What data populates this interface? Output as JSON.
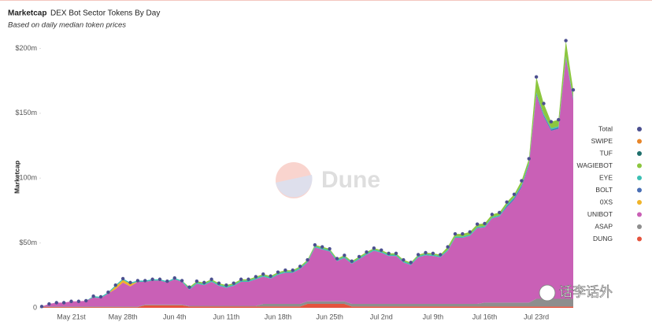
{
  "chart_data": {
    "type": "area",
    "stacked": true,
    "title": "Marketcap",
    "subtitle": "DEX Bot Sector Tokens By Day",
    "note": "Based on daily median token prices",
    "ylabel": "Marketcap",
    "legend": "right",
    "grid": false,
    "ylim": [
      0,
      210
    ],
    "yticks": [
      0,
      {
        "value": 50,
        "label": "$50m"
      },
      {
        "value": 100,
        "label": "$100m"
      },
      {
        "value": 150,
        "label": "$150m"
      },
      {
        "value": 200,
        "label": "$200m"
      }
    ],
    "categories": [
      null,
      null,
      null,
      null,
      "May 21st",
      null,
      null,
      null,
      null,
      null,
      null,
      "May 28th",
      null,
      null,
      null,
      null,
      null,
      null,
      "Jun 4th",
      null,
      null,
      null,
      null,
      null,
      null,
      "Jun 11th",
      null,
      null,
      null,
      null,
      null,
      null,
      "Jun 18th",
      null,
      null,
      null,
      null,
      null,
      null,
      "Jun 25th",
      null,
      null,
      null,
      null,
      null,
      null,
      "Jul 2nd",
      null,
      null,
      null,
      null,
      null,
      null,
      "Jul 9th",
      null,
      null,
      null,
      null,
      null,
      null,
      "Jul 16th",
      null,
      null,
      null,
      null,
      null,
      null,
      "Jul 23rd",
      null,
      null,
      null,
      null,
      null
    ],
    "series": [
      {
        "name": "Total",
        "type": "scatter",
        "color": "#4b4f8f",
        "values": [
          1,
          3,
          4,
          4,
          5,
          5,
          5.5,
          9,
          8.5,
          12,
          17.5,
          22.5,
          19.5,
          21,
          21,
          22,
          22,
          20.5,
          23,
          21,
          16,
          20.5,
          19.5,
          22,
          19,
          17.5,
          19,
          22,
          22,
          24,
          26,
          24.5,
          27.5,
          29,
          29,
          32,
          37,
          48.5,
          47,
          45.5,
          38,
          40.5,
          36,
          39.5,
          43,
          46,
          44.5,
          42,
          42,
          37,
          35,
          41,
          42.5,
          42,
          41,
          47,
          57,
          57,
          58.5,
          64.5,
          65,
          72,
          73.5,
          81.5,
          87.5,
          98,
          115,
          178,
          157.5,
          143.5,
          145,
          206,
          168
        ]
      },
      {
        "name": "SWIPE",
        "color": "#e8862a",
        "values": [
          0,
          0,
          0,
          0,
          0,
          0,
          0,
          0,
          0,
          0,
          0,
          0,
          0,
          0,
          0,
          0,
          0,
          0,
          0,
          0,
          0,
          0,
          0,
          0,
          0,
          0,
          0,
          0,
          0,
          0,
          0,
          0,
          0,
          0,
          0,
          0,
          0,
          0,
          0,
          0,
          0,
          0,
          0,
          0,
          0,
          0,
          0,
          0,
          0,
          0,
          0,
          0,
          0,
          0,
          0,
          0,
          0,
          0,
          0,
          0,
          0,
          0,
          0,
          0,
          0,
          0,
          0,
          0,
          0,
          0,
          0,
          0,
          0
        ]
      },
      {
        "name": "TUF",
        "color": "#1f6f6c",
        "values": [
          0,
          0,
          0,
          0,
          0,
          0,
          0,
          0,
          0,
          0,
          0,
          0,
          0,
          0,
          0,
          0,
          0,
          0,
          0,
          0,
          0,
          0,
          0,
          0,
          0,
          0,
          0,
          0,
          0,
          0,
          0,
          0,
          0,
          0,
          0,
          0,
          0,
          0,
          0,
          0,
          0,
          0,
          0,
          0,
          0,
          0,
          0,
          0,
          0,
          0,
          0,
          0,
          0,
          0,
          0,
          0,
          0,
          0,
          0,
          0,
          0,
          0,
          0,
          0,
          0,
          0,
          0,
          0,
          0,
          0,
          0,
          0,
          0
        ]
      },
      {
        "name": "WAGIEBOT",
        "color": "#8cc63f",
        "values": [
          0,
          0,
          0,
          0,
          0,
          0,
          0,
          0,
          0,
          0,
          0,
          0,
          0,
          0,
          0,
          0,
          0,
          0,
          0,
          0,
          1,
          1,
          1,
          1,
          1,
          1,
          1,
          1,
          1,
          1,
          1,
          1,
          1,
          1,
          1,
          1,
          1,
          1,
          1,
          1,
          1,
          1,
          1,
          1,
          1,
          1,
          1,
          1,
          1,
          1,
          1,
          1,
          1,
          1,
          1,
          2,
          2,
          2,
          2,
          2,
          2,
          2,
          2,
          2,
          2,
          3,
          3,
          12,
          8,
          5,
          5,
          12,
          6
        ]
      },
      {
        "name": "EYE",
        "color": "#3bbfb3",
        "values": [
          0,
          0,
          0,
          0,
          0,
          0,
          0,
          1,
          1,
          1,
          1,
          1,
          1,
          1,
          1,
          1,
          1,
          1,
          1,
          1,
          1,
          1,
          1,
          1,
          1,
          1,
          1,
          1,
          1,
          1,
          1,
          1,
          1,
          1,
          1,
          1,
          1,
          1,
          1,
          1,
          1,
          1,
          1,
          1,
          1,
          1,
          1,
          1,
          1,
          1,
          1,
          1,
          1,
          1,
          1,
          1,
          1,
          1,
          1,
          1,
          1,
          1,
          1,
          1,
          1,
          1,
          1,
          1,
          1,
          1,
          1,
          1,
          1
        ]
      },
      {
        "name": "BOLT",
        "color": "#4a6fb5",
        "values": [
          0,
          0,
          0,
          0,
          0,
          0,
          0,
          0,
          0,
          0,
          0,
          0,
          0,
          0,
          0,
          0,
          0,
          0,
          0,
          0,
          0,
          0,
          0,
          0,
          0,
          0,
          0,
          0,
          0,
          0,
          0,
          0,
          0,
          0,
          0,
          0,
          0,
          0,
          0,
          0,
          0,
          0,
          0,
          0,
          0,
          0,
          0,
          0,
          0,
          0,
          0,
          0,
          0,
          0,
          0,
          0,
          0,
          0,
          0,
          0,
          0,
          0,
          0,
          1,
          1,
          1,
          1,
          1,
          1,
          1,
          1,
          1,
          1
        ]
      },
      {
        "name": "0XS",
        "color": "#f0b429",
        "values": [
          0,
          0,
          0,
          0,
          0,
          0,
          0,
          0,
          0,
          0,
          2,
          2,
          2,
          0,
          0,
          0,
          0,
          0,
          0,
          0,
          0,
          0,
          0,
          0,
          0,
          0,
          0,
          0,
          0,
          0,
          0,
          0,
          0,
          0,
          0,
          0,
          0,
          0,
          0,
          0,
          0,
          0,
          0,
          0,
          0,
          0,
          0,
          0,
          0,
          0,
          0,
          0,
          0,
          0,
          0,
          0,
          0,
          0,
          0,
          0,
          0,
          0,
          0,
          0,
          0,
          0,
          0,
          0,
          0,
          0,
          0,
          0,
          0
        ]
      },
      {
        "name": "UNIBOT",
        "color": "#c960b6",
        "values": [
          0,
          2,
          3,
          3,
          4,
          4,
          4.5,
          7,
          6.5,
          10,
          13.5,
          18.5,
          15.5,
          19,
          17.5,
          18.5,
          18.5,
          17,
          19.5,
          17.5,
          12.5,
          17,
          16,
          18.5,
          15.5,
          14,
          15.5,
          18.5,
          18.5,
          20.5,
          21,
          19.5,
          22.5,
          24,
          24,
          27,
          30,
          41.5,
          40,
          38.5,
          31,
          33.5,
          31,
          34.5,
          38,
          41,
          39.5,
          37,
          37,
          32,
          30,
          36,
          37.5,
          37,
          36,
          41,
          51,
          51,
          52.5,
          58.5,
          58,
          65,
          66.5,
          73.5,
          79.5,
          89,
          106,
          157,
          140.5,
          129.5,
          131,
          185,
          153
        ]
      },
      {
        "name": "ASAP",
        "color": "#8e8e8e",
        "values": [
          0.5,
          0.5,
          0.5,
          0.5,
          0.5,
          0.5,
          0.5,
          0.5,
          0.5,
          0.5,
          0.5,
          0.5,
          0.5,
          0.5,
          0.5,
          0.5,
          0.5,
          0.5,
          0.5,
          0.5,
          0.5,
          0.5,
          0.5,
          0.5,
          0.5,
          0.5,
          0.5,
          0.5,
          0.5,
          0.5,
          2,
          2,
          2,
          2,
          2,
          2,
          2,
          2,
          2,
          2,
          2,
          2,
          2,
          2,
          2,
          2,
          2,
          2,
          2,
          2,
          2,
          2,
          2,
          2,
          2,
          2,
          2,
          2,
          2,
          2,
          3,
          3,
          3,
          3,
          3,
          3,
          3,
          6,
          6,
          6,
          6,
          6,
          6
        ]
      },
      {
        "name": "DUNG",
        "color": "#e5533d",
        "values": [
          0.5,
          0.5,
          0.5,
          0.5,
          0.5,
          0.5,
          0.5,
          0.5,
          0.5,
          0.5,
          0.5,
          0.5,
          0.5,
          0.5,
          2,
          2,
          2,
          2,
          2,
          2,
          1,
          1,
          1,
          1,
          1,
          1,
          1,
          1,
          1,
          1,
          1,
          1,
          1,
          1,
          1,
          1,
          3,
          3,
          3,
          3,
          3,
          3,
          1,
          1,
          1,
          1,
          1,
          1,
          1,
          1,
          1,
          1,
          1,
          1,
          1,
          1,
          1,
          1,
          1,
          1,
          1,
          1,
          1,
          1,
          1,
          1,
          1,
          1,
          1,
          1,
          1,
          1,
          1
        ]
      }
    ]
  },
  "watermarks": [
    "Dune",
    "话李话外"
  ]
}
